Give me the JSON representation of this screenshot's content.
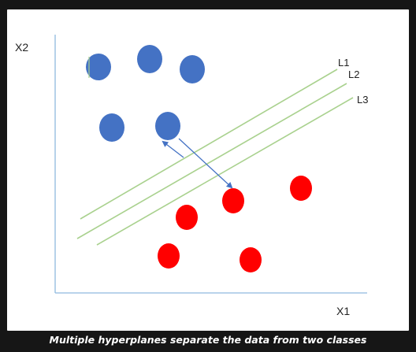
{
  "labels": {
    "y_axis": "X2",
    "x_axis": "X1",
    "lines": [
      "L1",
      "L2",
      "L3"
    ]
  },
  "caption": "Multiple hyperplanes separate the data from two classes",
  "colors": {
    "blue_class": "#4472c4",
    "red_class": "#ff0000",
    "hyperplane": "#a9d18e",
    "axis": "#8fb9df",
    "arrow": "#4472c4"
  }
}
